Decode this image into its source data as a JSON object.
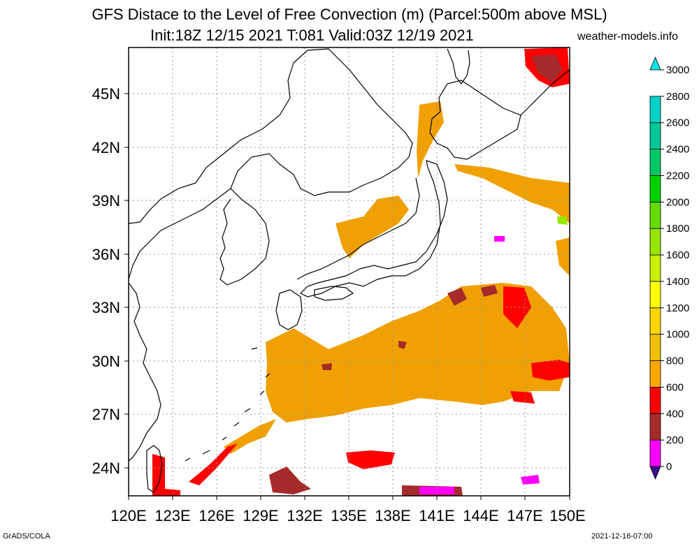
{
  "title": {
    "line1": "GFS Distace to the Level of Free Convection (m) (Parcel:500m above MSL)",
    "line2": "Init:18Z 12/15 2021 T:081 Valid:03Z 12/19 2021",
    "site": "weather-models.info"
  },
  "footer": {
    "left": "GrADS/COLA",
    "right": "2021-12-16-07:00"
  },
  "map": {
    "lon_range": [
      120,
      150
    ],
    "lat_range": [
      22.5,
      47.5
    ],
    "lon_ticks": [
      "120E",
      "123E",
      "126E",
      "129E",
      "132E",
      "135E",
      "138E",
      "141E",
      "144E",
      "147E",
      "150E"
    ],
    "lat_ticks": [
      "24N",
      "27N",
      "30N",
      "33N",
      "36N",
      "39N",
      "42N",
      "45N"
    ]
  },
  "colorbar": {
    "levels": [
      "0",
      "200",
      "400",
      "600",
      "800",
      "1000",
      "1200",
      "1400",
      "1600",
      "1800",
      "2000",
      "2200",
      "2400",
      "2600",
      "2800",
      "3000"
    ],
    "colors": [
      "#3c0a8c",
      "#ff00ff",
      "#a52a2a",
      "#ff0000",
      "#ffa500",
      "#f0c000",
      "#ffd700",
      "#ffff00",
      "#c8f000",
      "#96e600",
      "#64dc00",
      "#00d200",
      "#00c864",
      "#00c896",
      "#00d2c8",
      "#00e6e6"
    ]
  }
}
